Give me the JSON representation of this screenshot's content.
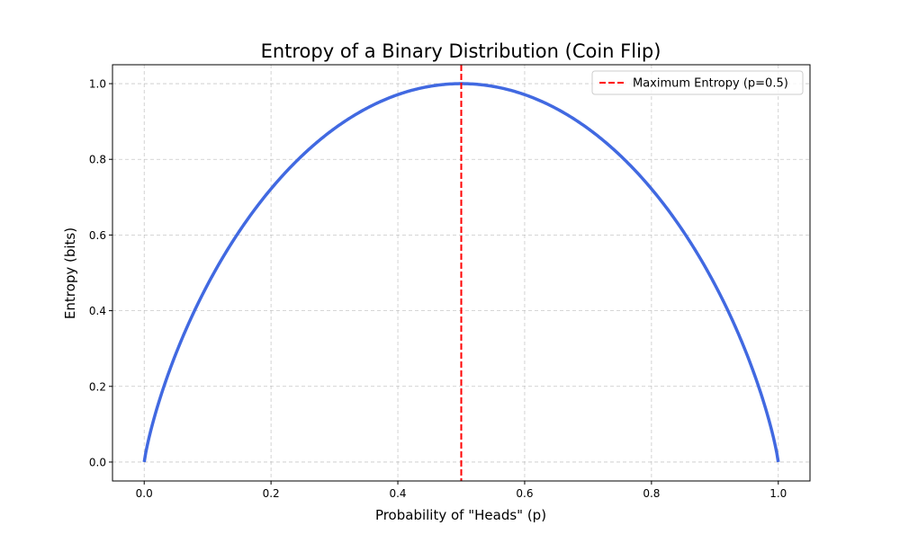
{
  "chart_data": {
    "type": "line",
    "title": "Entropy of a Binary Distribution (Coin Flip)",
    "xlabel": "Probability of \"Heads\" (p)",
    "ylabel": "Entropy (bits)",
    "xlim": [
      -0.05,
      1.05
    ],
    "ylim": [
      -0.05,
      1.05
    ],
    "xticks": [
      0.0,
      0.2,
      0.4,
      0.6,
      0.8,
      1.0
    ],
    "yticks": [
      0.0,
      0.2,
      0.4,
      0.6,
      0.8,
      1.0
    ],
    "xtick_labels": [
      "0.0",
      "0.2",
      "0.4",
      "0.6",
      "0.8",
      "1.0"
    ],
    "ytick_labels": [
      "0.0",
      "0.2",
      "0.4",
      "0.6",
      "0.8",
      "1.0"
    ],
    "grid": true,
    "legend_position": "top-right",
    "series": [
      {
        "color": "#4169e1",
        "function": "binary entropy H(p) = -p·log2(p) - (1-p)·log2(1-p)",
        "x": [
          0.0,
          0.01,
          0.02,
          0.05,
          0.1,
          0.15,
          0.2,
          0.25,
          0.3,
          0.35,
          0.4,
          0.45,
          0.5,
          0.55,
          0.6,
          0.65,
          0.7,
          0.75,
          0.8,
          0.85,
          0.9,
          0.95,
          0.98,
          0.99,
          1.0
        ],
        "y": [
          0.0,
          0.081,
          0.141,
          0.286,
          0.469,
          0.61,
          0.722,
          0.811,
          0.881,
          0.934,
          0.971,
          0.993,
          1.0,
          0.993,
          0.971,
          0.934,
          0.881,
          0.811,
          0.722,
          0.61,
          0.469,
          0.286,
          0.141,
          0.081,
          0.0
        ]
      }
    ],
    "vlines": [
      {
        "x": 0.5,
        "name": "Maximum Entropy (p=0.5)",
        "color": "#ff0000",
        "style": "dashed"
      }
    ]
  }
}
